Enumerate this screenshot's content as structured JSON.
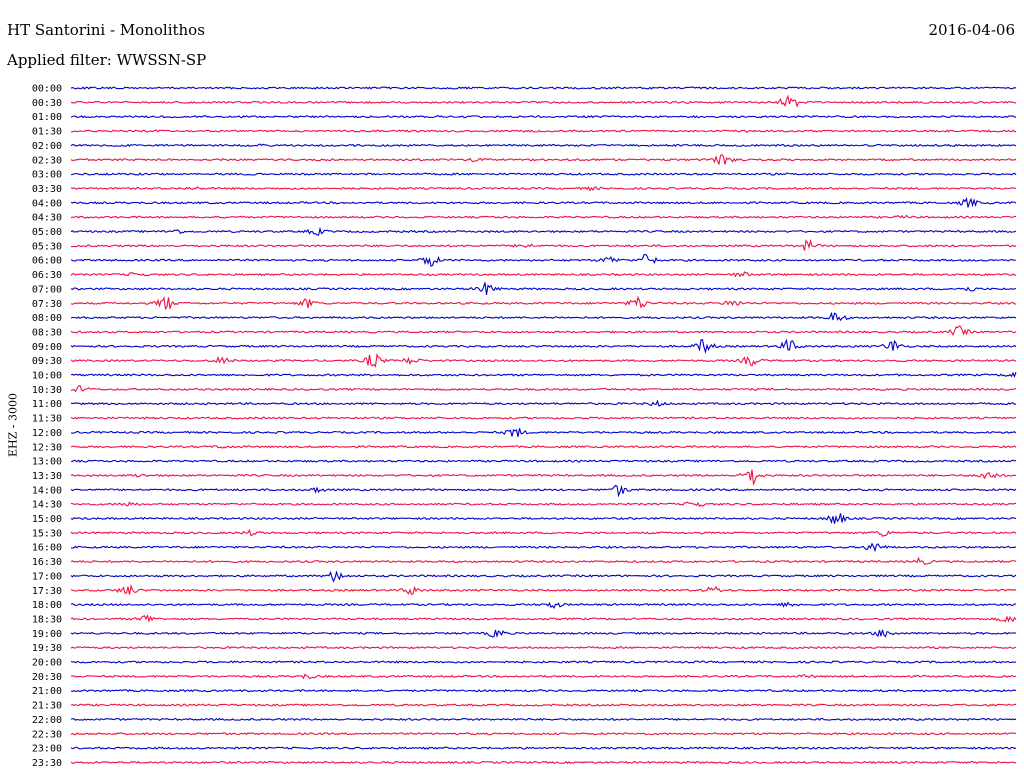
{
  "header": {
    "station": "HT Santorini - Monolithos",
    "date": "2016-04-06",
    "filter": "Applied filter: WWSSN-SP"
  },
  "chart_data": {
    "type": "line",
    "title": "",
    "xlabel": "",
    "ylabel": "EHZ - 3000",
    "colors": {
      "even": "#0000cc",
      "odd": "#ee1144"
    },
    "rows": [
      {
        "label": "00:00",
        "events": []
      },
      {
        "label": "00:30",
        "events": [
          {
            "x": 0.76,
            "amp": 9
          }
        ]
      },
      {
        "label": "01:00",
        "events": []
      },
      {
        "label": "01:30",
        "events": []
      },
      {
        "label": "02:00",
        "events": [
          {
            "x": 0.2,
            "amp": 1
          }
        ]
      },
      {
        "label": "02:30",
        "events": [
          {
            "x": 0.43,
            "amp": 2
          },
          {
            "x": 0.69,
            "amp": 5
          }
        ]
      },
      {
        "label": "03:00",
        "events": []
      },
      {
        "label": "03:30",
        "events": [
          {
            "x": 0.13,
            "amp": 1
          },
          {
            "x": 0.55,
            "amp": 1
          }
        ]
      },
      {
        "label": "04:00",
        "events": [
          {
            "x": 0.95,
            "amp": 4
          }
        ]
      },
      {
        "label": "04:30",
        "events": [
          {
            "x": 0.88,
            "amp": 1
          }
        ]
      },
      {
        "label": "05:00",
        "events": [
          {
            "x": 0.11,
            "amp": 2
          },
          {
            "x": 0.26,
            "amp": 3
          }
        ]
      },
      {
        "label": "05:30",
        "events": [
          {
            "x": 0.48,
            "amp": 2
          },
          {
            "x": 0.78,
            "amp": 5
          }
        ]
      },
      {
        "label": "06:00",
        "events": [
          {
            "x": 0.38,
            "amp": 6
          },
          {
            "x": 0.57,
            "amp": 3
          },
          {
            "x": 0.61,
            "amp": 6
          }
        ]
      },
      {
        "label": "06:30",
        "events": [
          {
            "x": 0.07,
            "amp": 2
          },
          {
            "x": 0.71,
            "amp": 2
          }
        ]
      },
      {
        "label": "07:00",
        "events": [
          {
            "x": 0.44,
            "amp": 6
          },
          {
            "x": 0.95,
            "amp": 2
          }
        ]
      },
      {
        "label": "07:30",
        "events": [
          {
            "x": 0.1,
            "amp": 7
          },
          {
            "x": 0.25,
            "amp": 4
          },
          {
            "x": 0.6,
            "amp": 6
          },
          {
            "x": 0.7,
            "amp": 3
          }
        ]
      },
      {
        "label": "08:00",
        "events": [
          {
            "x": 0.81,
            "amp": 5
          }
        ]
      },
      {
        "label": "08:30",
        "events": [
          {
            "x": 0.94,
            "amp": 5
          }
        ]
      },
      {
        "label": "09:00",
        "events": [
          {
            "x": 0.67,
            "amp": 7
          },
          {
            "x": 0.76,
            "amp": 6
          },
          {
            "x": 0.87,
            "amp": 6
          }
        ]
      },
      {
        "label": "09:30",
        "events": [
          {
            "x": 0.16,
            "amp": 3
          },
          {
            "x": 0.32,
            "amp": 7
          },
          {
            "x": 0.36,
            "amp": 3
          },
          {
            "x": 0.72,
            "amp": 5
          }
        ]
      },
      {
        "label": "10:00",
        "events": [
          {
            "x": 1.0,
            "amp": 4
          }
        ]
      },
      {
        "label": "10:30",
        "events": [
          {
            "x": 0.01,
            "amp": 3
          }
        ]
      },
      {
        "label": "11:00",
        "events": [
          {
            "x": 0.62,
            "amp": 2
          }
        ]
      },
      {
        "label": "11:30",
        "events": []
      },
      {
        "label": "12:00",
        "events": [
          {
            "x": 0.47,
            "amp": 5
          }
        ]
      },
      {
        "label": "12:30",
        "events": [
          {
            "x": 0.16,
            "amp": 1
          }
        ]
      },
      {
        "label": "13:00",
        "events": []
      },
      {
        "label": "13:30",
        "events": [
          {
            "x": 0.07,
            "amp": 1
          },
          {
            "x": 0.72,
            "amp": 9
          },
          {
            "x": 0.97,
            "amp": 4
          }
        ]
      },
      {
        "label": "14:00",
        "events": [
          {
            "x": 0.26,
            "amp": 2
          },
          {
            "x": 0.58,
            "amp": 5
          }
        ]
      },
      {
        "label": "14:30",
        "events": [
          {
            "x": 0.06,
            "amp": 2
          },
          {
            "x": 0.66,
            "amp": 3
          }
        ]
      },
      {
        "label": "15:00",
        "events": [
          {
            "x": 0.81,
            "amp": 6
          }
        ]
      },
      {
        "label": "15:30",
        "events": [
          {
            "x": 0.19,
            "amp": 2
          },
          {
            "x": 0.86,
            "amp": 3
          }
        ]
      },
      {
        "label": "16:00",
        "events": [
          {
            "x": 0.85,
            "amp": 5
          }
        ]
      },
      {
        "label": "16:30",
        "events": [
          {
            "x": 0.9,
            "amp": 3
          }
        ]
      },
      {
        "label": "17:00",
        "events": [
          {
            "x": 0.28,
            "amp": 5
          }
        ]
      },
      {
        "label": "17:30",
        "events": [
          {
            "x": 0.06,
            "amp": 5
          },
          {
            "x": 0.36,
            "amp": 4
          },
          {
            "x": 0.68,
            "amp": 3
          }
        ]
      },
      {
        "label": "18:00",
        "events": [
          {
            "x": 0.51,
            "amp": 3
          },
          {
            "x": 0.76,
            "amp": 2
          }
        ]
      },
      {
        "label": "18:30",
        "events": [
          {
            "x": 0.08,
            "amp": 4
          },
          {
            "x": 0.99,
            "amp": 3
          }
        ]
      },
      {
        "label": "19:00",
        "events": [
          {
            "x": 0.45,
            "amp": 4
          },
          {
            "x": 0.86,
            "amp": 4
          }
        ]
      },
      {
        "label": "19:30",
        "events": []
      },
      {
        "label": "20:00",
        "events": []
      },
      {
        "label": "20:30",
        "events": [
          {
            "x": 0.25,
            "amp": 2
          },
          {
            "x": 0.78,
            "amp": 1
          }
        ]
      },
      {
        "label": "21:00",
        "events": []
      },
      {
        "label": "21:30",
        "events": []
      },
      {
        "label": "22:00",
        "events": []
      },
      {
        "label": "22:30",
        "events": []
      },
      {
        "label": "23:00",
        "events": []
      },
      {
        "label": "23:30",
        "events": []
      }
    ]
  }
}
